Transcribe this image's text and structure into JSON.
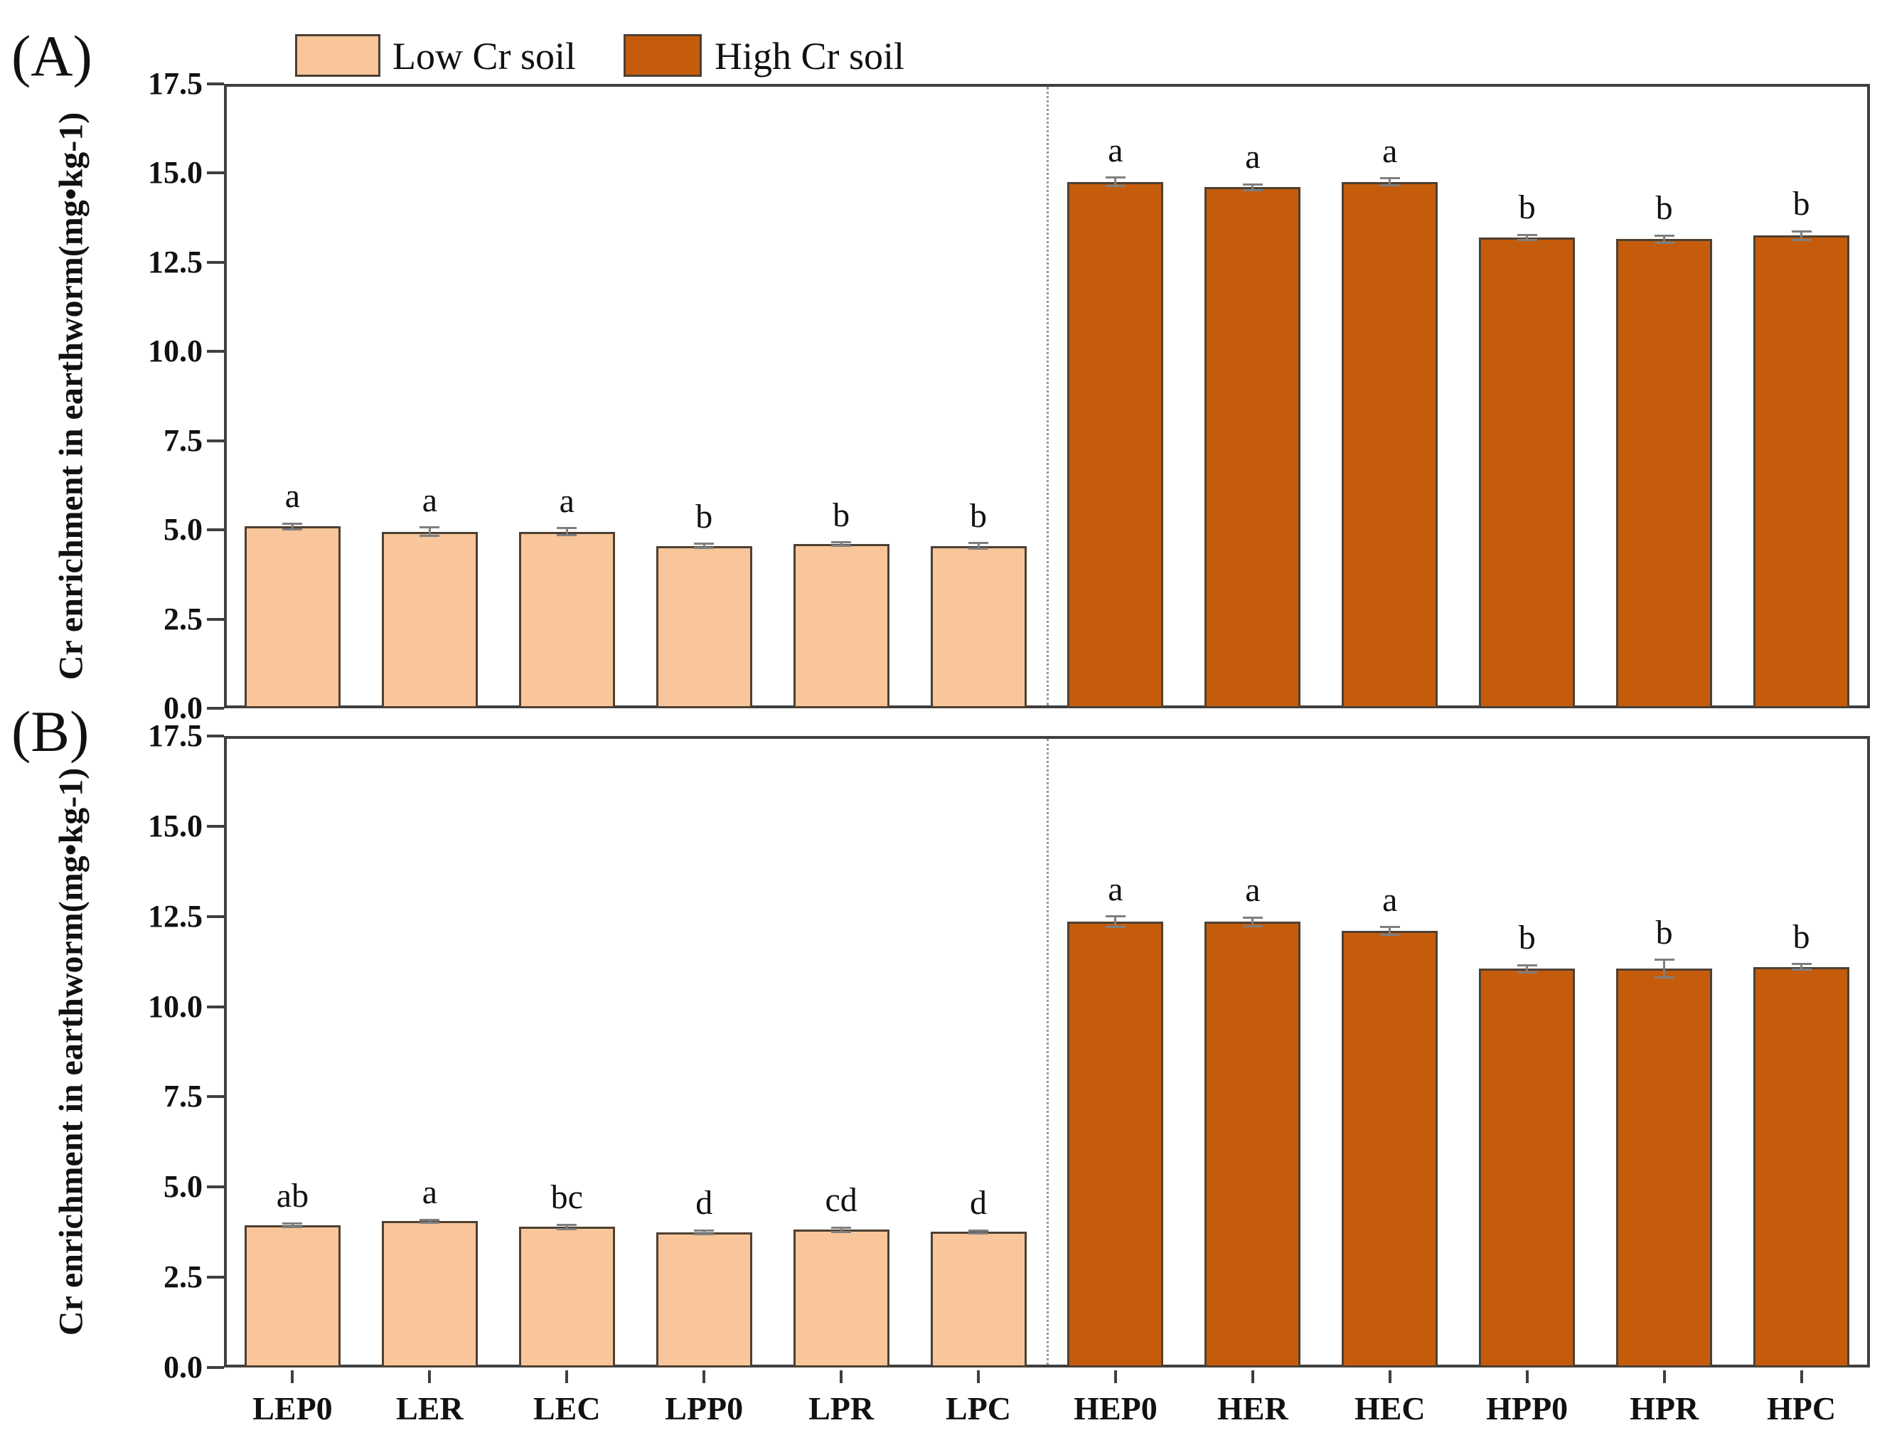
{
  "figure": {
    "panel_a_tag": "(A)",
    "panel_b_tag": "(B)"
  },
  "legend": {
    "items": [
      {
        "label": "Low Cr soil",
        "color": "#F8C69A"
      },
      {
        "label": "High Cr soil",
        "color": "#C55C0C"
      }
    ]
  },
  "colors": {
    "axis": "#3F3F3F",
    "bar_edge": "#4D4033",
    "error_bar": "#7F7F7F",
    "divider": "#999999",
    "low_fill": "#F8C69A",
    "high_fill": "#C55C0C"
  },
  "chart_data": [
    {
      "type": "bar",
      "panel": "A",
      "title": "",
      "xlabel": "",
      "ylabel": "Cr enrichment in earthworm(mg•kg-1)",
      "ylim": [
        0,
        17.5
      ],
      "ytick_labels": [
        "0.0",
        "2.5",
        "5.0",
        "7.5",
        "10.0",
        "12.5",
        "15.0",
        "17.5"
      ],
      "grid": false,
      "legend_position": "top-left",
      "show_x_tick_labels": false,
      "divider_between": [
        "LPC",
        "HEP0"
      ],
      "categories": [
        "LEP0",
        "LER",
        "LEC",
        "LPP0",
        "LPR",
        "LPC",
        "HEP0",
        "HER",
        "HEC",
        "HPP0",
        "HPR",
        "HPC"
      ],
      "groups": [
        "low",
        "low",
        "low",
        "low",
        "low",
        "low",
        "high",
        "high",
        "high",
        "high",
        "high",
        "high"
      ],
      "values": [
        5.1,
        4.95,
        4.95,
        4.55,
        4.6,
        4.55,
        14.75,
        14.6,
        14.75,
        13.2,
        13.15,
        13.25
      ],
      "errors": [
        0.08,
        0.12,
        0.1,
        0.06,
        0.05,
        0.08,
        0.12,
        0.08,
        0.1,
        0.07,
        0.1,
        0.12
      ],
      "sig_letters": [
        "a",
        "a",
        "a",
        "b",
        "b",
        "b",
        "a",
        "a",
        "a",
        "b",
        "b",
        "b"
      ]
    },
    {
      "type": "bar",
      "panel": "B",
      "title": "",
      "xlabel": "",
      "ylabel": "Cr enrichment in earthworm(mg•kg-1)",
      "ylim": [
        0,
        17.5
      ],
      "ytick_labels": [
        "0.0",
        "2.5",
        "5.0",
        "7.5",
        "10.0",
        "12.5",
        "15.0",
        "17.5"
      ],
      "grid": false,
      "legend_position": "none",
      "show_x_tick_labels": true,
      "divider_between": [
        "LPC",
        "HEP0"
      ],
      "categories": [
        "LEP0",
        "LER",
        "LEC",
        "LPP0",
        "LPR",
        "LPC",
        "HEP0",
        "HER",
        "HEC",
        "HPP0",
        "HPR",
        "HPC"
      ],
      "groups": [
        "low",
        "low",
        "low",
        "low",
        "low",
        "low",
        "high",
        "high",
        "high",
        "high",
        "high",
        "high"
      ],
      "values": [
        3.95,
        4.05,
        3.9,
        3.75,
        3.82,
        3.76,
        12.35,
        12.35,
        12.1,
        11.05,
        11.05,
        11.1
      ],
      "errors": [
        0.05,
        0.04,
        0.06,
        0.05,
        0.06,
        0.04,
        0.15,
        0.12,
        0.1,
        0.1,
        0.25,
        0.08
      ],
      "sig_letters": [
        "ab",
        "a",
        "bc",
        "d",
        "cd",
        "d",
        "a",
        "a",
        "a",
        "b",
        "b",
        "b"
      ]
    }
  ]
}
